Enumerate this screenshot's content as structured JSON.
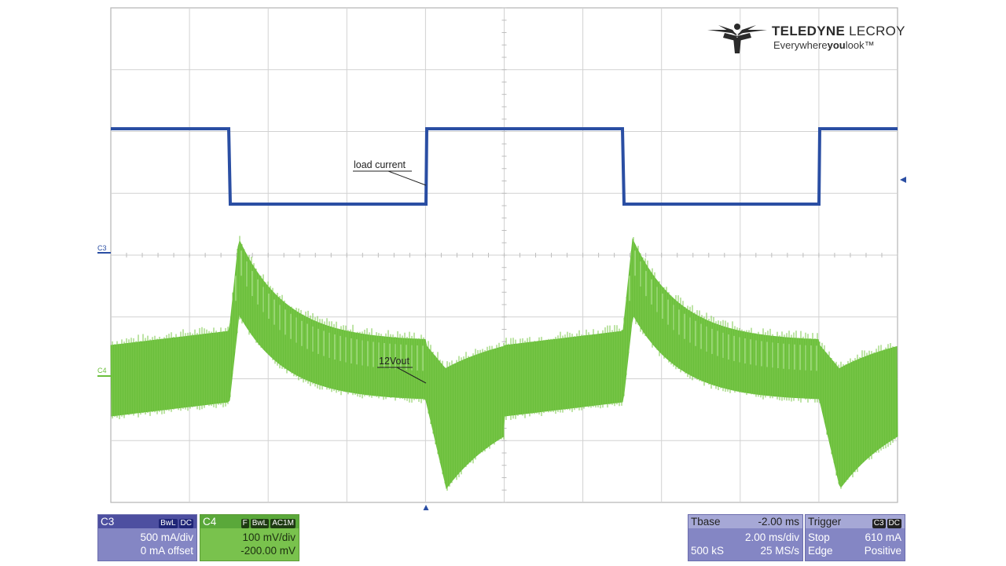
{
  "logo": {
    "brand_bold": "TELEDYNE",
    "brand_light": "LECROY",
    "tagline_pre": "Everywhere",
    "tagline_bold": "you",
    "tagline_post": "look",
    "tagline_tm": "™"
  },
  "screen": {
    "annotation_load": "load current",
    "annotation_vout": "12Vout",
    "marker_c3": "C3",
    "marker_c4": "C4",
    "colors": {
      "ch3": "#2a4ea3",
      "ch4": "#6bbf3c",
      "grid": "#c9c9c9"
    }
  },
  "c3_panel": {
    "name": "C3",
    "badge_bw": "BwL",
    "badge_coupling": "DC",
    "scale": "500 mA/div",
    "offset": "0 mA offset"
  },
  "c4_panel": {
    "name": "C4",
    "badge_f": "F",
    "badge_bw": "BwL",
    "badge_coupling": "AC1M",
    "scale": "100 mV/div",
    "offset": "-200.00 mV"
  },
  "tbase_panel": {
    "label": "Tbase",
    "delay": "-2.00 ms",
    "timebase": "2.00 ms/div",
    "samples": "500 kS",
    "rate": "25 MS/s"
  },
  "trigger_panel": {
    "label": "Trigger",
    "badge_source": "C3",
    "badge_coupling": "DC",
    "mode": "Stop",
    "level": "610 mA",
    "type": "Edge",
    "slope": "Positive"
  }
}
